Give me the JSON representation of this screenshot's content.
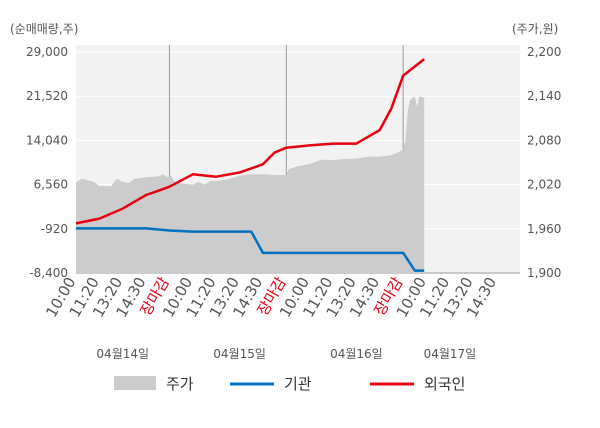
{
  "chart_data": {
    "type": "line",
    "left_axis": {
      "unit": "(순매매량,주)",
      "ticks": [
        "29,000",
        "21,520",
        "14,040",
        "6,560",
        "-920",
        "-8,400"
      ],
      "range": [
        -8400,
        29000
      ]
    },
    "right_axis": {
      "unit": "(주가,원)",
      "ticks": [
        "2,200",
        "2,140",
        "2,080",
        "2,020",
        "1,960",
        "1,900"
      ],
      "range": [
        1900,
        2200
      ]
    },
    "x_ticks": [
      "10:00",
      "11:20",
      "13:20",
      "14:30",
      "장마감",
      "10:00",
      "11:20",
      "13:20",
      "14:30",
      "장마감",
      "10:00",
      "11:20",
      "13:20",
      "14:30",
      "장마감",
      "10:00",
      "11:20",
      "13:20",
      "14:30"
    ],
    "close_label": "장마감",
    "dates": [
      "04월14일",
      "04월15일",
      "04월16일",
      "04월17일"
    ],
    "x_range": [
      0,
      19
    ],
    "series": [
      {
        "name": "주가",
        "axis": "right",
        "kind": "area",
        "color": "#cccccc",
        "points": [
          [
            0,
            2023
          ],
          [
            0.25,
            2028
          ],
          [
            0.5,
            2026
          ],
          [
            0.75,
            2024
          ],
          [
            1,
            2018
          ],
          [
            1.5,
            2018
          ],
          [
            1.75,
            2028
          ],
          [
            2,
            2024
          ],
          [
            2.25,
            2022
          ],
          [
            2.5,
            2028
          ],
          [
            3,
            2030
          ],
          [
            3.5,
            2031
          ],
          [
            3.75,
            2034
          ],
          [
            3.9,
            2030
          ],
          [
            4,
            2030
          ],
          [
            4.05,
            2033
          ],
          [
            4.2,
            2025
          ],
          [
            4.4,
            2022
          ],
          [
            5,
            2020
          ],
          [
            5.25,
            2024
          ],
          [
            5.5,
            2020
          ],
          [
            5.75,
            2025
          ],
          [
            6,
            2025
          ],
          [
            6.5,
            2027
          ],
          [
            7,
            2032
          ],
          [
            7.5,
            2034
          ],
          [
            8,
            2034
          ],
          [
            8.5,
            2033
          ],
          [
            9,
            2033
          ],
          [
            9.1,
            2041
          ],
          [
            9.5,
            2045
          ],
          [
            10,
            2048
          ],
          [
            10.5,
            2054
          ],
          [
            11,
            2053
          ],
          [
            11.5,
            2055
          ],
          [
            12,
            2055
          ],
          [
            12.5,
            2058
          ],
          [
            13,
            2058
          ],
          [
            13.5,
            2060
          ],
          [
            13.8,
            2064
          ],
          [
            14,
            2068
          ],
          [
            14.1,
            2080
          ],
          [
            14.2,
            2120
          ],
          [
            14.3,
            2135
          ],
          [
            14.5,
            2140
          ],
          [
            14.6,
            2125
          ],
          [
            14.7,
            2140
          ],
          [
            14.9,
            2138
          ]
        ]
      },
      {
        "name": "기관",
        "axis": "left",
        "kind": "line",
        "color": "#0070c0",
        "points": [
          [
            0,
            -860
          ],
          [
            1,
            -860
          ],
          [
            2,
            -860
          ],
          [
            3,
            -860
          ],
          [
            4,
            -1200
          ],
          [
            5,
            -1400
          ],
          [
            6,
            -1400
          ],
          [
            7,
            -1400
          ],
          [
            7.5,
            -1400
          ],
          [
            8,
            -5000
          ],
          [
            9,
            -5000
          ],
          [
            10,
            -5000
          ],
          [
            11,
            -5000
          ],
          [
            12,
            -5000
          ],
          [
            13,
            -5000
          ],
          [
            14,
            -5000
          ],
          [
            14.5,
            -8000
          ],
          [
            14.9,
            -8000
          ]
        ]
      },
      {
        "name": "외국인",
        "axis": "left",
        "kind": "line",
        "color": "#e60012",
        "points": [
          [
            0,
            0
          ],
          [
            1,
            800
          ],
          [
            2,
            2500
          ],
          [
            3,
            4800
          ],
          [
            3.5,
            5500
          ],
          [
            4,
            6200
          ],
          [
            5,
            8300
          ],
          [
            6,
            7900
          ],
          [
            7,
            8600
          ],
          [
            8,
            10000
          ],
          [
            8.5,
            12000
          ],
          [
            9,
            12800
          ],
          [
            10,
            13200
          ],
          [
            11,
            13500
          ],
          [
            12,
            13500
          ],
          [
            13,
            15800
          ],
          [
            13.5,
            19500
          ],
          [
            14,
            25000
          ],
          [
            14.9,
            27800
          ]
        ]
      }
    ]
  }
}
